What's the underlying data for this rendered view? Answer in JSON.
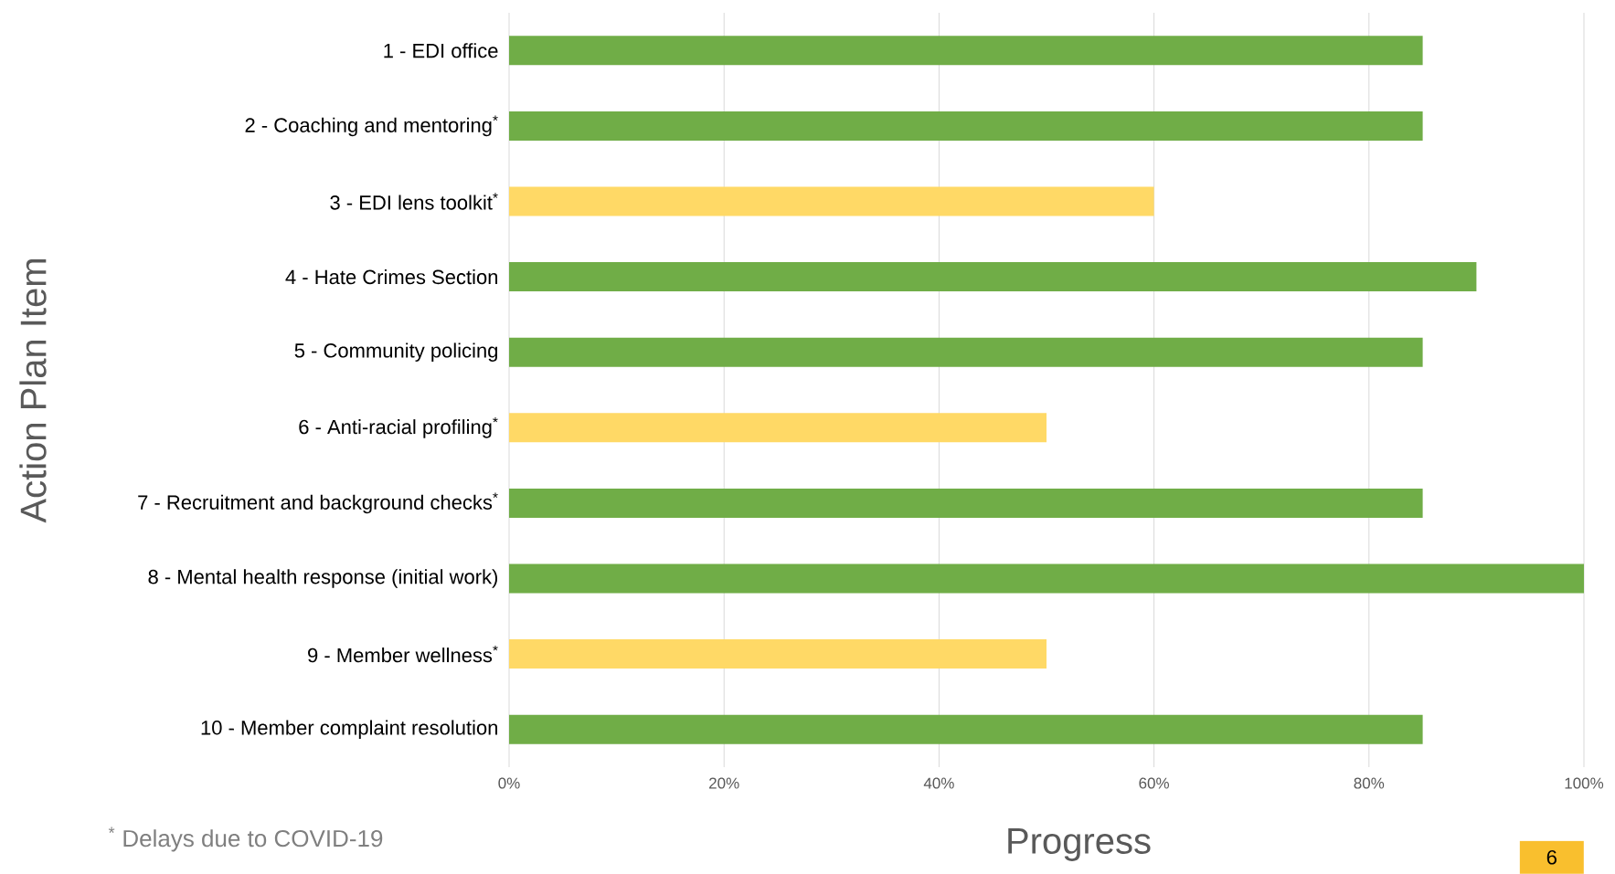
{
  "chart_data": {
    "type": "bar",
    "orientation": "horizontal",
    "xlabel": "Progress",
    "ylabel": "Action Plan Item",
    "categories": [
      "1 - EDI office",
      "2 - Coaching and mentoring$^{*}$",
      "3 - EDI lens toolkit$^{*}$",
      "4 - Hate Crimes Section",
      "5 - Community policing",
      "6 - Anti-racial profiling$^{*}$",
      "7 - Recruitment and background checks$^{*}$",
      "8 - Mental health response (initial work)",
      "9 - Member wellness$^{*}$",
      "10 - Member complaint resolution"
    ],
    "values": [
      85,
      85,
      60,
      90,
      85,
      50,
      85,
      100,
      50,
      85
    ],
    "colors": [
      "#70ad47",
      "#70ad47",
      "#ffd966",
      "#70ad47",
      "#70ad47",
      "#ffd966",
      "#70ad47",
      "#70ad47",
      "#ffd966",
      "#70ad47"
    ],
    "xlim": [
      0,
      100
    ],
    "xticks": [
      {
        "value": 0,
        "label": "0%"
      },
      {
        "value": 20,
        "label": "20%"
      },
      {
        "value": 40,
        "label": "40%"
      },
      {
        "value": 60,
        "label": "60%"
      },
      {
        "value": 80,
        "label": "80%"
      },
      {
        "value": 100,
        "label": "100%"
      }
    ],
    "grid": "x",
    "annotations": [
      "$^{*}$ Delays due to COVID-19",
      "6"
    ]
  }
}
